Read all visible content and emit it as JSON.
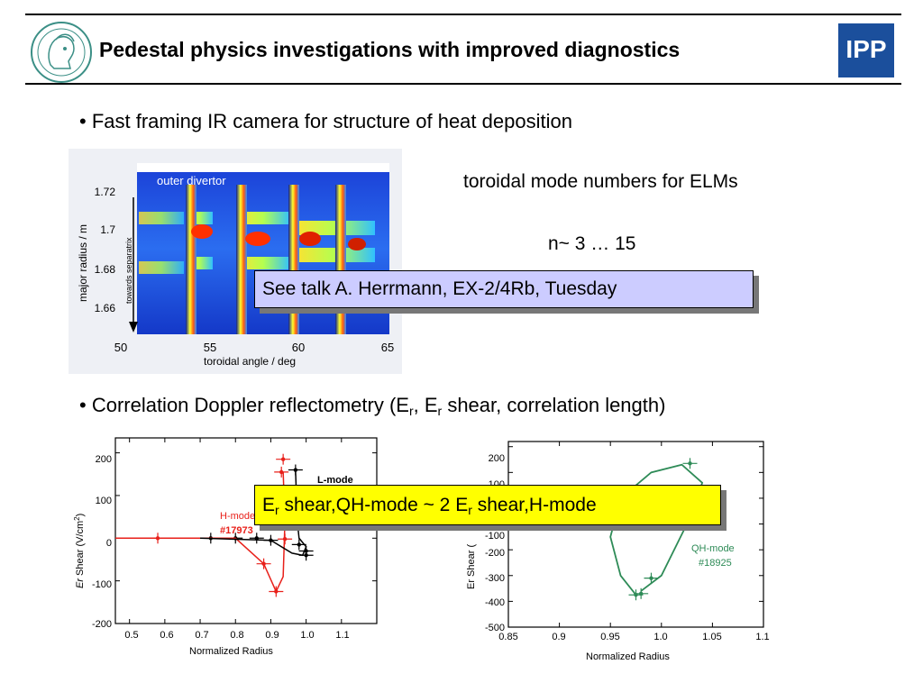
{
  "header": {
    "title": "Pedestal physics investigations with  improved diagnostics",
    "logo_left": "mpg-minerva-logo",
    "logo_right": "IPP"
  },
  "bullets": {
    "ir": "• Fast framing IR camera for structure of heat deposition",
    "reflecto_prefix": "• Correlation Doppler reflectometry (E",
    "reflecto_sub1": "r",
    "reflecto_mid": ", E",
    "reflecto_sub2": "r",
    "reflecto_suffix": " shear, correlation length)"
  },
  "notes": {
    "toroidal": "toroidal mode numbers for ELMs",
    "range": "n~ 3 … 15"
  },
  "callouts": {
    "talk": "See talk A. Herrmann, EX-2/4Rb, Tuesday",
    "shear_e1": "E",
    "shear_r1": "r",
    "shear_mid": " shear,QH-mode ~ 2 E",
    "shear_r2": "r",
    "shear_end": " shear,H-mode"
  },
  "chart_data": [
    {
      "type": "heatmap",
      "annotation": "outer divertor",
      "side_label": "towards separatrix",
      "xlabel": "toroidal angle / deg",
      "ylabel": "major radius / m",
      "xticks": [
        "50",
        "55",
        "60",
        "65"
      ],
      "yticks": [
        "1.72",
        "1.7",
        "1.68",
        "1.66"
      ],
      "xlim": [
        50,
        65
      ],
      "ylim": [
        1.645,
        1.735
      ]
    },
    {
      "type": "scatter",
      "xlabel": "Normalized Radius",
      "ylabel_italic": "Er",
      "ylabel_rest": " Shear (V/cm",
      "ylabel_sup": "2",
      "ylabel_close": ")",
      "xticks": [
        "0.5",
        "0.6",
        "0.7",
        "0.8",
        "0.9",
        "1.0",
        "1.1"
      ],
      "yticks": [
        "200",
        "100",
        "0",
        "-100",
        "-200"
      ],
      "xlim": [
        0.46,
        1.2
      ],
      "ylim": [
        -200,
        235
      ],
      "series": [
        {
          "name": "H-mode",
          "shot": "#17973",
          "color": "#e8201a",
          "points": [
            [
              0.58,
              0
            ],
            [
              0.88,
              -60
            ],
            [
              0.915,
              -125
            ],
            [
              0.935,
              185
            ],
            [
              0.93,
              155
            ],
            [
              0.935,
              110
            ],
            [
              0.94,
              -2
            ],
            [
              0.93,
              40
            ]
          ]
        },
        {
          "name": "L-mode",
          "color": "#000000",
          "points": [
            [
              0.73,
              0
            ],
            [
              0.8,
              0
            ],
            [
              0.86,
              0
            ],
            [
              0.9,
              -5
            ],
            [
              0.97,
              160
            ],
            [
              0.975,
              40
            ],
            [
              0.98,
              -15
            ],
            [
              1.0,
              -40
            ],
            [
              1.0,
              -30
            ]
          ]
        }
      ]
    },
    {
      "type": "scatter",
      "xlabel": "Normalized Radius",
      "ylabel": "Er Shear (",
      "xticks": [
        "0.85",
        "0.9",
        "0.95",
        "1.0",
        "1.05",
        "1.1"
      ],
      "yticks": [
        "200",
        "100",
        "0",
        "-100",
        "-200",
        "-300",
        "-400",
        "-500"
      ],
      "xlim": [
        0.85,
        1.1
      ],
      "ylim": [
        -500,
        220
      ],
      "series": [
        {
          "name": "QH-mode",
          "shot": "#18925",
          "color": "#2e8b57",
          "points": [
            [
              1.028,
              135
            ],
            [
              0.99,
              -310
            ],
            [
              0.98,
              -370
            ],
            [
              0.975,
              -375
            ]
          ]
        }
      ]
    }
  ]
}
